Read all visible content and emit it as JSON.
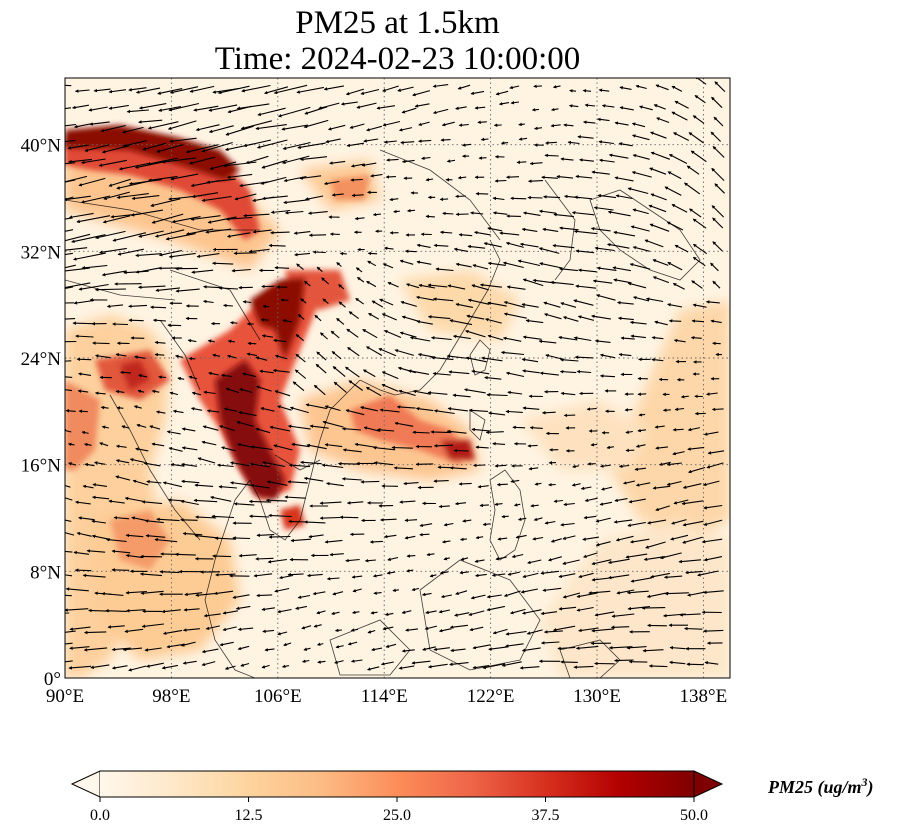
{
  "title": {
    "line1": "PM25 at 1.5km",
    "line2": "Time: 2024-02-23 10:00:00"
  },
  "map": {
    "lon_range": [
      90,
      140
    ],
    "lat_range": [
      0,
      45
    ],
    "lon_ticks": [
      {
        "value": 90,
        "label": "90°E"
      },
      {
        "value": 98,
        "label": "98°E"
      },
      {
        "value": 106,
        "label": "106°E"
      },
      {
        "value": 114,
        "label": "114°E"
      },
      {
        "value": 122,
        "label": "122°E"
      },
      {
        "value": 130,
        "label": "130°E"
      },
      {
        "value": 138,
        "label": "138°E"
      }
    ],
    "lat_ticks": [
      {
        "value": 0,
        "label": "0°"
      },
      {
        "value": 8,
        "label": "8°N"
      },
      {
        "value": 16,
        "label": "16°N"
      },
      {
        "value": 24,
        "label": "24°N"
      },
      {
        "value": 32,
        "label": "32°N"
      },
      {
        "value": 40,
        "label": "40°N"
      }
    ],
    "gridlines": "dotted",
    "field": "PM25",
    "overlay": "wind vectors"
  },
  "colorbar": {
    "label": "PM25 (ug/m",
    "label_sup": "3",
    "label_end": ")",
    "colormap": "OrRd",
    "range": [
      0,
      50
    ],
    "extend": "both",
    "ticks": [
      "0.0",
      "12.5",
      "25.0",
      "37.5",
      "50.0"
    ],
    "colors": [
      "#fff7ec",
      "#fee8c8",
      "#fdd49e",
      "#fdbb84",
      "#fc8d59",
      "#ef6548",
      "#d7301f",
      "#b30000",
      "#7f0000"
    ]
  }
}
